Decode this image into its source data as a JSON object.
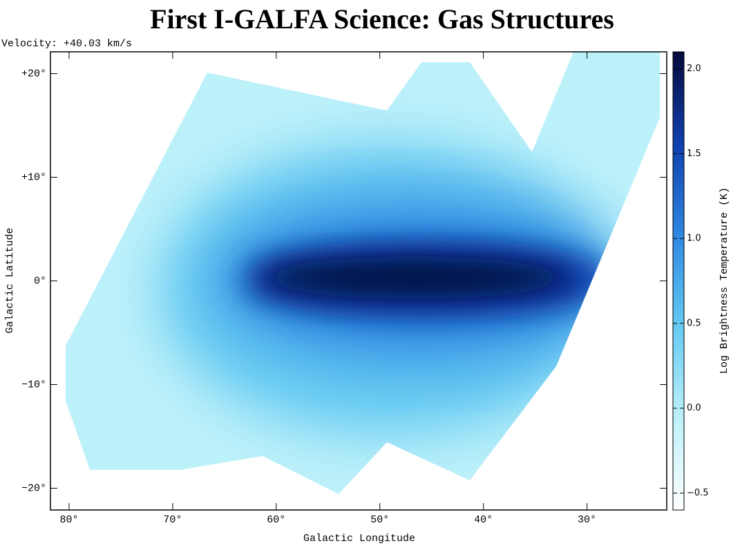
{
  "chart_data": {
    "type": "heatmap",
    "title": "First I-GALFA Science: Gas Structures",
    "annotation": "Velocity: +40.03 km/s",
    "xlabel": "Galactic Longitude",
    "ylabel": "Galactic Latitude",
    "xlim": [
      81.8,
      22.3
    ],
    "ylim": [
      -22.1,
      22.1
    ],
    "xticks": [
      {
        "value": 80,
        "label": "80°"
      },
      {
        "value": 70,
        "label": "70°"
      },
      {
        "value": 60,
        "label": "60°"
      },
      {
        "value": 50,
        "label": "50°"
      },
      {
        "value": 40,
        "label": "40°"
      },
      {
        "value": 30,
        "label": "30°"
      }
    ],
    "yticks": [
      {
        "value": 20,
        "label": "+20°"
      },
      {
        "value": 10,
        "label": "+10°"
      },
      {
        "value": 0,
        "label": "0°"
      },
      {
        "value": -10,
        "label": "−10°"
      },
      {
        "value": -20,
        "label": "−20°"
      }
    ],
    "colorbar": {
      "label": "Log Brightness Temperature (K)",
      "lim": [
        -0.6,
        2.1
      ],
      "ticks": [
        {
          "value": 2.0,
          "label": "2.0"
        },
        {
          "value": 1.5,
          "label": "1.5"
        },
        {
          "value": 1.0,
          "label": "1.0"
        },
        {
          "value": 0.5,
          "label": "0.5"
        },
        {
          "value": 0.0,
          "label": "0.0"
        },
        {
          "value": -0.5,
          "label": "−0.5"
        }
      ],
      "colors": [
        "#ffffff",
        "#bdf1fa",
        "#66caf2",
        "#2f88e2",
        "#0f3fae",
        "#050a3c"
      ]
    }
  }
}
